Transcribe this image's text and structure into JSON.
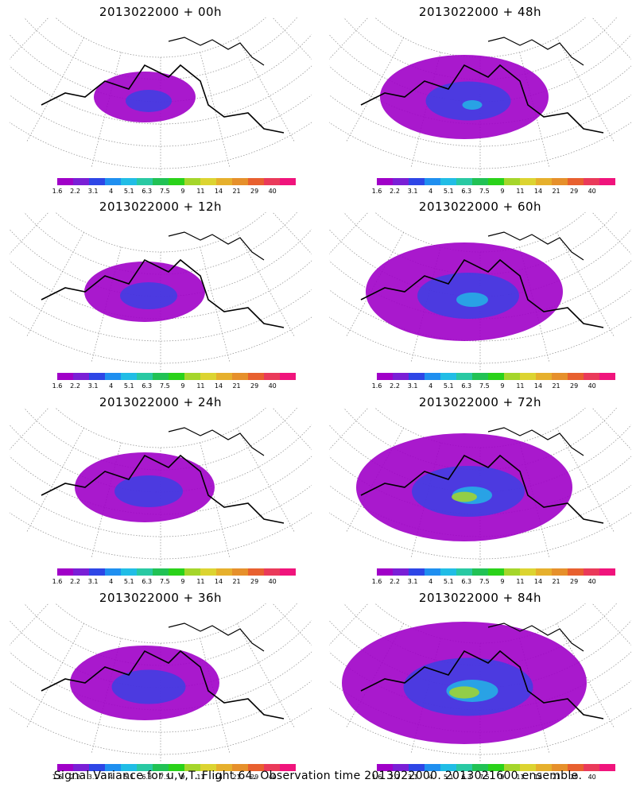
{
  "colorbar": {
    "colors": [
      "#a000c8",
      "#7a1fd6",
      "#2e46e6",
      "#1f8ff0",
      "#21bde6",
      "#29c9a3",
      "#21c255",
      "#2ad21a",
      "#a5d62b",
      "#dcd431",
      "#e6b02d",
      "#e6902b",
      "#e8602f",
      "#ea3a5a",
      "#f0147c"
    ],
    "labels": [
      "1.6",
      "2.2",
      "3.1",
      "4",
      "5.1",
      "6.3",
      "7.5",
      "9",
      "11",
      "14",
      "21",
      "29",
      "40"
    ]
  },
  "panels": [
    {
      "title": "2013022000 + 00h",
      "intensity": 0.2
    },
    {
      "title": "2013022000 + 48h",
      "intensity": 0.55
    },
    {
      "title": "2013022000 + 12h",
      "intensity": 0.3
    },
    {
      "title": "2013022000 + 60h",
      "intensity": 0.7
    },
    {
      "title": "2013022000 + 24h",
      "intensity": 0.4
    },
    {
      "title": "2013022000 + 72h",
      "intensity": 0.8
    },
    {
      "title": "2013022000 + 36h",
      "intensity": 0.45
    },
    {
      "title": "2013022000 + 84h",
      "intensity": 0.95
    }
  ],
  "footer": "Signal Variance for u,v,T. Flight 64. Observation time 2013022000. 2013021600 ensemble."
}
